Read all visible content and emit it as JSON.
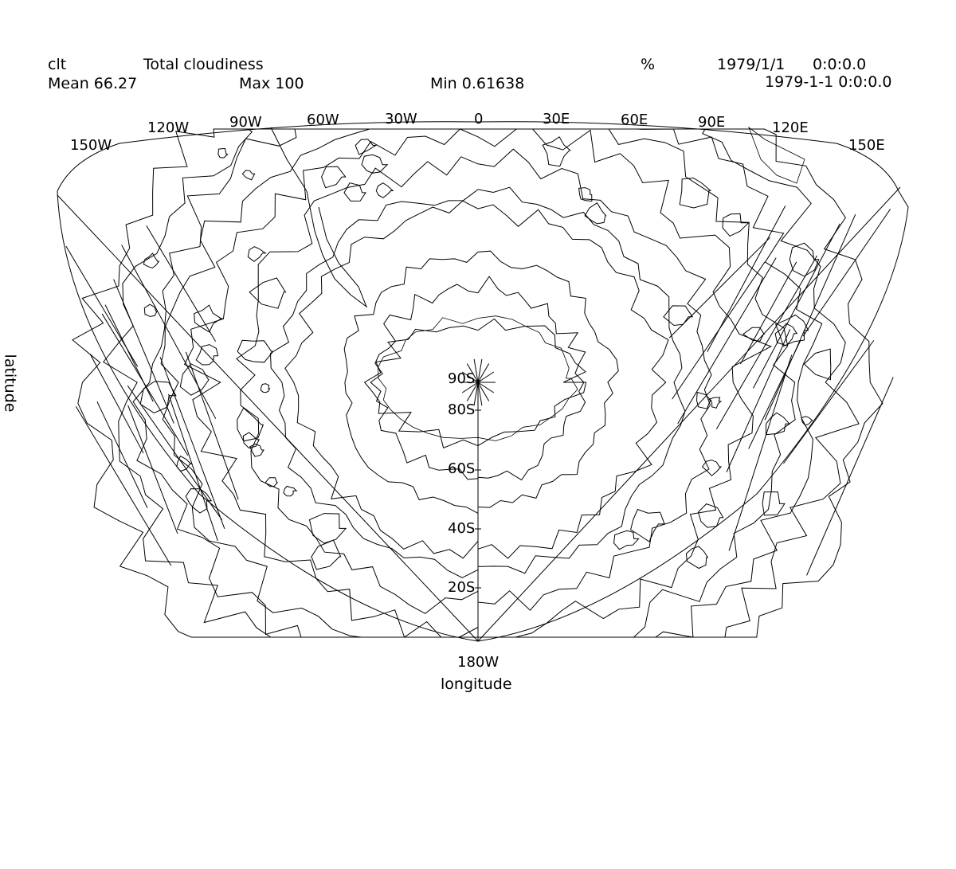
{
  "header": {
    "variable": "clt",
    "long_name": "Total cloudiness",
    "units": "%",
    "date": "1979/1/1",
    "time": "0:0:0.0",
    "mean": "Mean 66.27",
    "max": "Max 100",
    "min": "Min 0.61638",
    "timestamp": "1979-1-1 0:0:0.0"
  },
  "map": {
    "projection": "polar",
    "hemisphere": "south",
    "lon_labels": [
      "150W",
      "120W",
      "90W",
      "60W",
      "30W",
      "0",
      "30E",
      "60E",
      "90E",
      "120E",
      "150E"
    ],
    "lat_labels": [
      "90S",
      "80S",
      "60S",
      "40S",
      "20S"
    ],
    "bottom_lon_label": "180W",
    "xlabel": "longitude",
    "ylabel": "latitude",
    "line_color": "#000000"
  }
}
